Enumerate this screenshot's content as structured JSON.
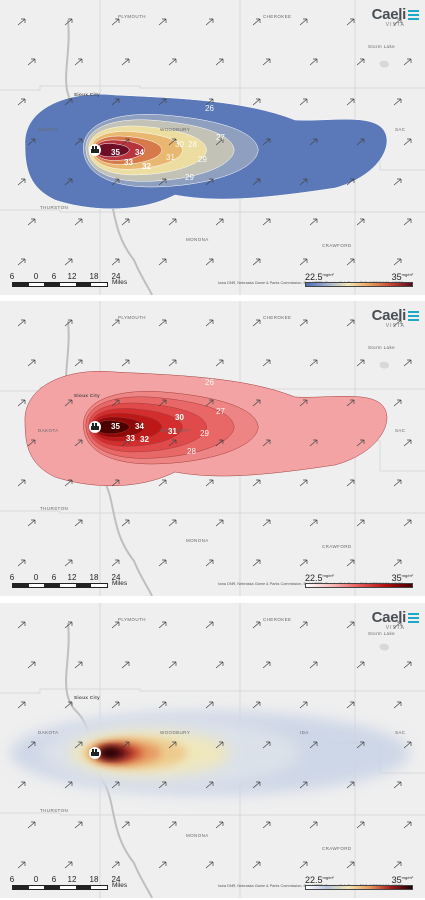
{
  "brand": {
    "name": "Caeli",
    "sub": "VISTA",
    "accent": "#1aa9c7"
  },
  "places": {
    "plymouth": "PLYMOUTH",
    "cherokee": "CHEROKEE",
    "storm_lake": "Storm Lake",
    "sioux_city": "Sioux City",
    "dakota": "DAKOTA",
    "woodbury": "WOODBURY",
    "sac": "SAC",
    "ida": "IDA",
    "thurston": "THURSTON",
    "monona": "MONONA",
    "crawford": "CRAWFORD"
  },
  "attribution": "Iowa DNR, Nebraska Game & Parks Commission, Esri, HERE, Garmin, SafeGraph, FAO, METI/NASA, USGS",
  "scale_bar": {
    "ticks": [
      "6",
      "0",
      "6",
      "12",
      "18",
      "24"
    ],
    "unit": "Miles"
  },
  "legend": {
    "min": "22.5",
    "max": "35",
    "unit": "mg/m²"
  },
  "panels": [
    {
      "id": "filled-contours",
      "palette": [
        "#5b79b8",
        "#8e9fc0",
        "#c2c2b6",
        "#ecdda0",
        "#e9b870",
        "#d77a4a",
        "#b8343d",
        "#6e0e26"
      ],
      "legend_gradient": [
        "#4a6db2",
        "#9fb0cf",
        "#f2e6b8",
        "#e8a25a",
        "#c94432",
        "#5a0b1e"
      ],
      "contour_labels": [
        "35",
        "34",
        "33",
        "32",
        "31",
        "30",
        "29",
        "29",
        "28",
        "27",
        "26"
      ]
    },
    {
      "id": "red-contours",
      "palette": [
        "#f3a3a3",
        "#ee8585",
        "#e86868",
        "#e04a4a",
        "#d32d2d",
        "#bd1818",
        "#8f0909",
        "#4c0000"
      ],
      "legend_gradient": [
        "#ffffff",
        "#f7b8b8",
        "#e65a5a",
        "#b01010",
        "#4a0000"
      ],
      "contour_labels": [
        "35",
        "34",
        "33",
        "32",
        "31",
        "30",
        "29",
        "28",
        "27",
        "26"
      ]
    },
    {
      "id": "heatmap",
      "palette": [
        "#c9d3e6",
        "#dfe4ea",
        "#f1e7b9",
        "#edc98b",
        "#e69860",
        "#c9482f",
        "#6b0b14",
        "#1a0000"
      ],
      "legend_gradient": [
        "#ffffff",
        "#b8c6e2",
        "#f3e5b0",
        "#e79a5c",
        "#a41b1b",
        "#1a0000"
      ],
      "contour_labels": []
    }
  ]
}
